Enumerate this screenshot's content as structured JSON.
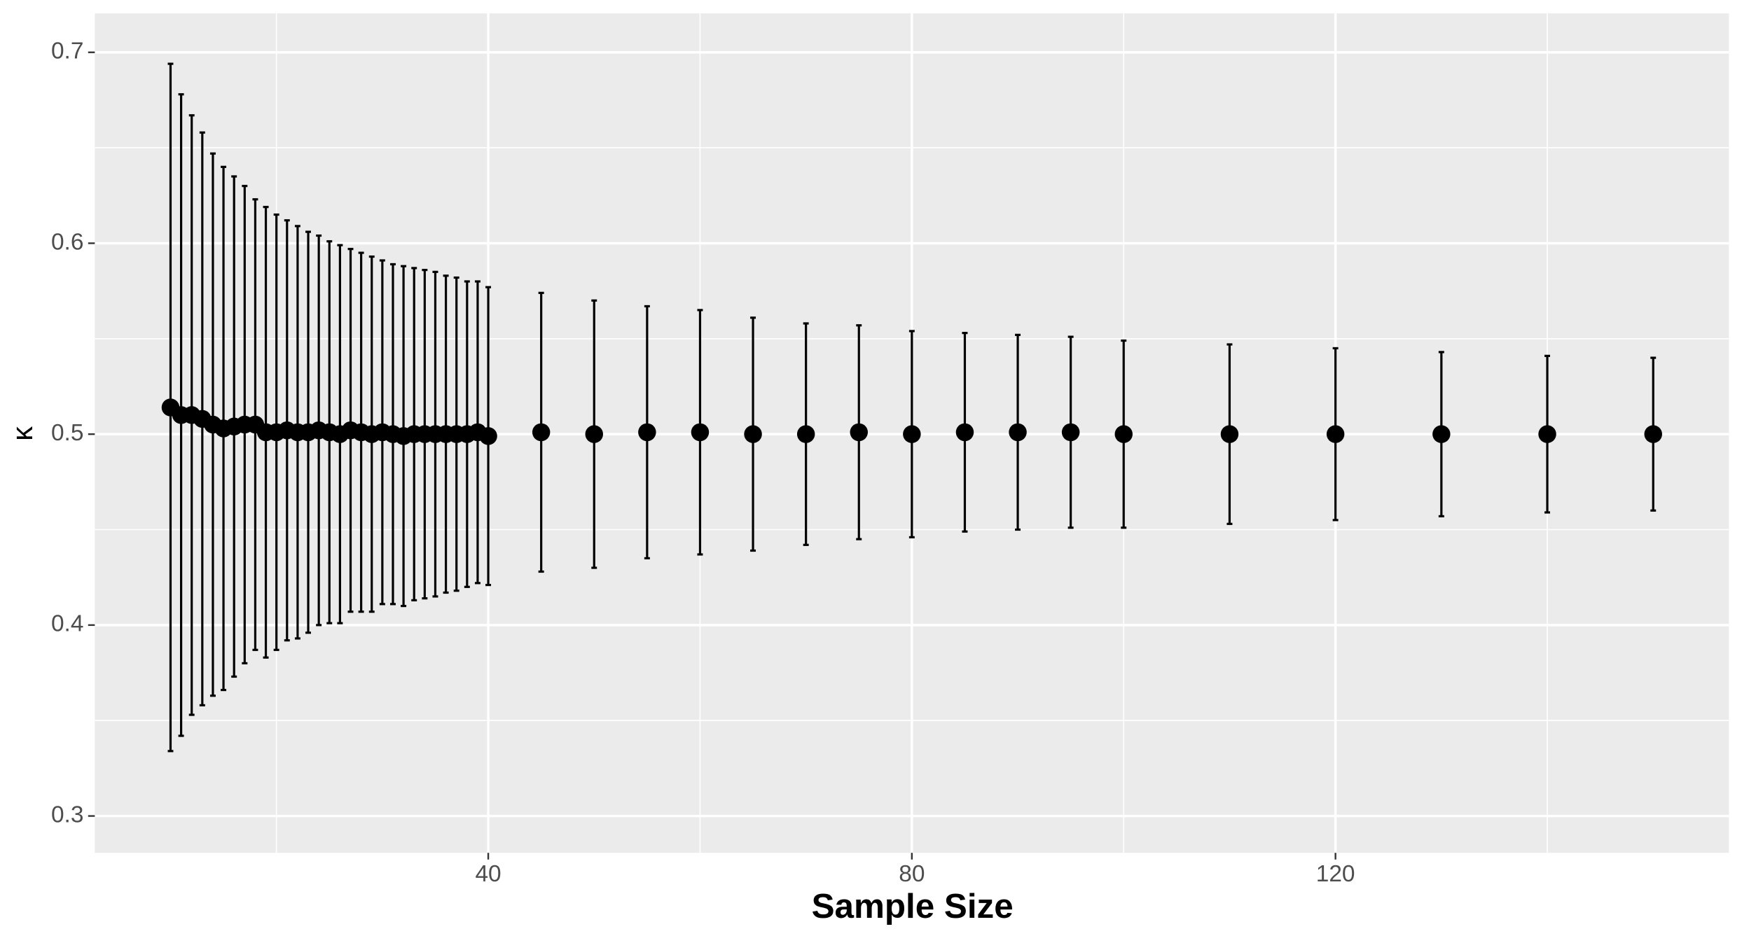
{
  "chart_data": {
    "type": "errorbar",
    "x_label": "Sample Size",
    "y_label": "κ",
    "x": [
      10,
      11,
      12,
      13,
      14,
      15,
      16,
      17,
      18,
      19,
      20,
      21,
      22,
      23,
      24,
      25,
      26,
      27,
      28,
      29,
      30,
      31,
      32,
      33,
      34,
      35,
      36,
      37,
      38,
      39,
      40,
      45,
      50,
      55,
      60,
      65,
      70,
      75,
      80,
      85,
      90,
      95,
      100,
      110,
      120,
      130,
      140,
      150
    ],
    "series": [
      {
        "color": "#000000",
        "values": [
          0.514,
          0.51,
          0.51,
          0.508,
          0.505,
          0.503,
          0.504,
          0.505,
          0.505,
          0.501,
          0.501,
          0.502,
          0.501,
          0.501,
          0.502,
          0.501,
          0.5,
          0.502,
          0.501,
          0.5,
          0.501,
          0.5,
          0.499,
          0.5,
          0.5,
          0.5,
          0.5,
          0.5,
          0.5,
          0.501,
          0.499,
          0.501,
          0.5,
          0.501,
          0.501,
          0.5,
          0.5,
          0.501,
          0.5,
          0.501,
          0.501,
          0.501,
          0.5,
          0.5,
          0.5,
          0.5,
          0.5,
          0.5
        ],
        "errors": [
          0.18,
          0.168,
          0.157,
          0.15,
          0.142,
          0.137,
          0.131,
          0.125,
          0.118,
          0.118,
          0.114,
          0.11,
          0.108,
          0.105,
          0.102,
          0.1,
          0.099,
          0.095,
          0.094,
          0.093,
          0.09,
          0.089,
          0.089,
          0.087,
          0.086,
          0.085,
          0.083,
          0.082,
          0.08,
          0.079,
          0.078,
          0.073,
          0.07,
          0.066,
          0.064,
          0.061,
          0.058,
          0.056,
          0.054,
          0.052,
          0.051,
          0.05,
          0.049,
          0.047,
          0.045,
          0.043,
          0.041,
          0.04
        ]
      }
    ],
    "xlim": [
      2.85,
      157.15
    ],
    "ylim": [
      0.2807,
      0.7204
    ],
    "xticks": [
      40,
      80,
      120
    ],
    "yticks": [
      0.3,
      0.4,
      0.5,
      0.6,
      0.7
    ],
    "x_minor_ticks": [
      20,
      60,
      100,
      140
    ],
    "y_minor_ticks": [
      0.35,
      0.45,
      0.55,
      0.65
    ],
    "grid": true,
    "panel_color": "#ebebeb"
  }
}
